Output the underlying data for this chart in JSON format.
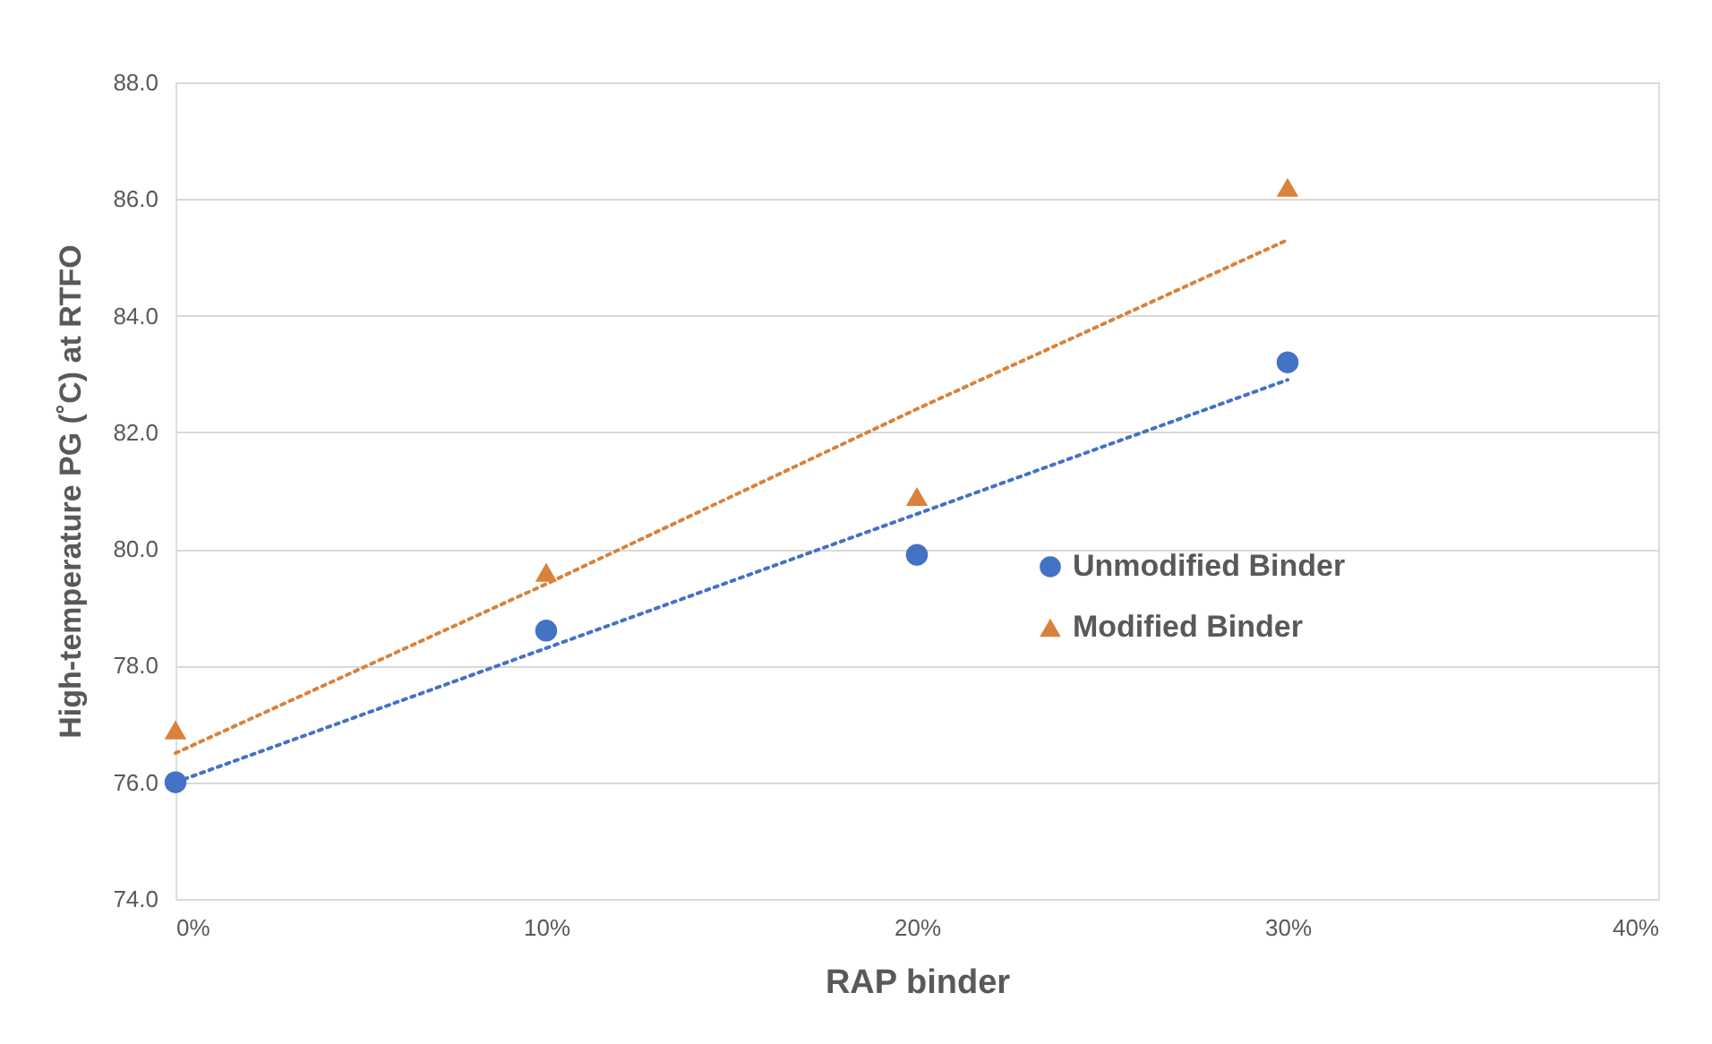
{
  "chart_data": {
    "type": "scatter",
    "xlabel": "RAP binder",
    "ylabel": "High-temperature PG (˚C) at RTFO",
    "x": [
      0,
      10,
      20,
      30
    ],
    "series": [
      {
        "name": "Unmodified Binder",
        "color": "#4472c4",
        "marker": "circle",
        "values": [
          76.0,
          78.6,
          79.9,
          83.2
        ]
      },
      {
        "name": "Modified Binder",
        "color": "#d9823b",
        "marker": "triangle",
        "values": [
          76.9,
          79.6,
          80.9,
          86.2
        ]
      },
      {
        "type": "line",
        "color": "#4472c4",
        "line_style": "dotted",
        "marker": "none",
        "values": [
          76.0,
          78.3,
          80.6,
          82.9
        ]
      },
      {
        "type": "line",
        "color": "#d9823b",
        "line_style": "dotted",
        "marker": "none",
        "values": [
          76.5,
          79.4,
          82.4,
          85.3
        ]
      }
    ],
    "xlim": [
      0,
      40
    ],
    "xticks": [
      {
        "value": 0,
        "label": "0%"
      },
      {
        "value": 10,
        "label": "10%"
      },
      {
        "value": 20,
        "label": "20%"
      },
      {
        "value": 30,
        "label": "30%"
      },
      {
        "value": 40,
        "label": "40%"
      }
    ],
    "ylim": [
      74,
      88
    ],
    "yticks": [
      {
        "value": 74,
        "label": "74.0"
      },
      {
        "value": 76,
        "label": "76.0"
      },
      {
        "value": 78,
        "label": "78.0"
      },
      {
        "value": 80,
        "label": "80.0"
      },
      {
        "value": 82,
        "label": "82.0"
      },
      {
        "value": 84,
        "label": "84.0"
      },
      {
        "value": 86,
        "label": "86.0"
      },
      {
        "value": 88,
        "label": "88.0"
      }
    ],
    "grid": "y",
    "legend": "right"
  }
}
